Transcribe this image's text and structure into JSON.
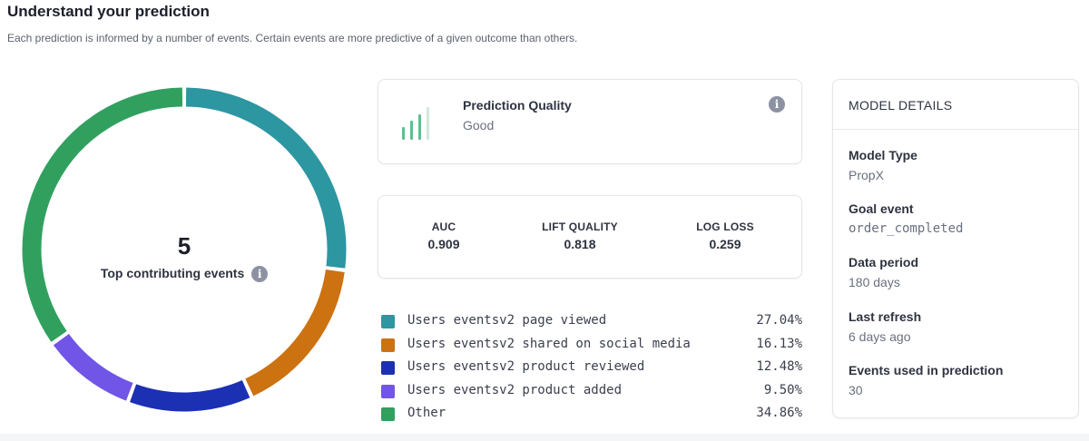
{
  "header": {
    "title": "Understand your prediction",
    "subtitle": "Each prediction is informed by a number of events. Certain events are more predictive of a given outcome than others."
  },
  "donut": {
    "center_value": "5",
    "center_label": "Top contributing events",
    "info_glyph": "i"
  },
  "quality": {
    "title": "Prediction Quality",
    "value": "Good",
    "info_glyph": "i",
    "icon": "signal-bars-icon",
    "bar_colors": [
      "#5fbf8f",
      "#5fbf8f",
      "#5fbf8f",
      "#cfe9dc"
    ]
  },
  "metrics": [
    {
      "label": "AUC",
      "value": "0.909"
    },
    {
      "label": "LIFT QUALITY",
      "value": "0.818"
    },
    {
      "label": "LOG LOSS",
      "value": "0.259"
    }
  ],
  "events": [
    {
      "name": "Users eventsv2 page viewed",
      "pct_label": "27.04%",
      "pct": 27.04,
      "color": "#2c96a1"
    },
    {
      "name": "Users eventsv2 shared on social media",
      "pct_label": "16.13%",
      "pct": 16.13,
      "color": "#cc7211"
    },
    {
      "name": "Users eventsv2 product reviewed",
      "pct_label": "12.48%",
      "pct": 12.48,
      "color": "#1b30b3"
    },
    {
      "name": "Users eventsv2 product added",
      "pct_label": "9.50%",
      "pct": 9.5,
      "color": "#7155e6"
    },
    {
      "name": "Other",
      "pct_label": "34.86%",
      "pct": 34.86,
      "color": "#31a05f"
    }
  ],
  "model_details": {
    "heading": "MODEL DETAILS",
    "model_type_label": "Model Type",
    "model_type": "PropX",
    "goal_event_label": "Goal event",
    "goal_event": "order_completed",
    "data_period_label": "Data period",
    "data_period": "180 days",
    "last_refresh_label": "Last refresh",
    "last_refresh": "6 days ago",
    "events_used_label": "Events used in prediction",
    "events_used": "30"
  }
}
